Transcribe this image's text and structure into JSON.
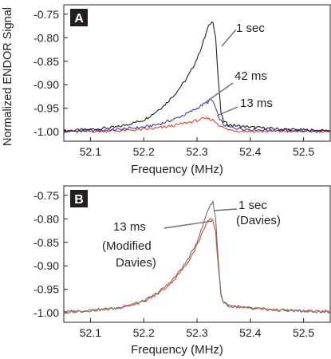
{
  "figure": {
    "ylabel": "Normalized ENDOR Signal"
  },
  "colors": {
    "black": "#231f20",
    "gray": "#6d6e71",
    "blue": "#3f3fae",
    "red": "#e8442a",
    "badge_bg": "#231f20",
    "badge_fg": "#ffffff"
  },
  "chart_data": [
    {
      "type": "line",
      "panel": "A",
      "xlabel": "Frequency (MHz)",
      "xlim": [
        52.05,
        52.55
      ],
      "ylim": [
        -1.02,
        -0.73
      ],
      "x_ticks": [
        "52.1",
        "52.2",
        "52.3",
        "52.4",
        "52.5"
      ],
      "y_ticks": [
        "-0.75",
        "-0.80",
        "-0.85",
        "-0.90",
        "-0.95",
        "-1.00"
      ],
      "grid": false,
      "series": [
        {
          "name": "1 sec",
          "color": "#231f20",
          "x": [
            52.05,
            52.1,
            52.15,
            52.2,
            52.22,
            52.24,
            52.26,
            52.28,
            52.29,
            52.3,
            52.31,
            52.315,
            52.32,
            52.325,
            52.33,
            52.335,
            52.34,
            52.345,
            52.35,
            52.36,
            52.38,
            52.4,
            52.45,
            52.5,
            52.55
          ],
          "y": [
            -0.998,
            -0.995,
            -0.99,
            -0.975,
            -0.96,
            -0.942,
            -0.918,
            -0.888,
            -0.868,
            -0.845,
            -0.815,
            -0.798,
            -0.78,
            -0.77,
            -0.765,
            -0.8,
            -0.89,
            -0.96,
            -0.978,
            -0.985,
            -0.988,
            -0.99,
            -0.994,
            -0.996,
            -0.998
          ]
        },
        {
          "name": "42 ms",
          "color": "#3f3fae",
          "x": [
            52.05,
            52.1,
            52.15,
            52.2,
            52.22,
            52.24,
            52.26,
            52.28,
            52.3,
            52.31,
            52.32,
            52.325,
            52.33,
            52.335,
            52.34,
            52.35,
            52.36,
            52.38,
            52.4,
            52.45,
            52.5,
            52.55
          ],
          "y": [
            -0.999,
            -0.998,
            -0.995,
            -0.99,
            -0.986,
            -0.98,
            -0.972,
            -0.962,
            -0.95,
            -0.943,
            -0.937,
            -0.932,
            -0.935,
            -0.95,
            -0.968,
            -0.985,
            -0.99,
            -0.993,
            -0.995,
            -0.997,
            -0.998,
            -0.999
          ]
        },
        {
          "name": "13 ms",
          "color": "#e8442a",
          "x": [
            52.05,
            52.1,
            52.15,
            52.2,
            52.22,
            52.24,
            52.26,
            52.28,
            52.3,
            52.31,
            52.32,
            52.33,
            52.34,
            52.35,
            52.36,
            52.38,
            52.4,
            52.45,
            52.5,
            52.55
          ],
          "y": [
            -0.999,
            -0.999,
            -0.998,
            -0.995,
            -0.993,
            -0.99,
            -0.986,
            -0.981,
            -0.976,
            -0.973,
            -0.972,
            -0.975,
            -0.984,
            -0.992,
            -0.996,
            -0.998,
            -0.999,
            -0.999,
            -0.999,
            -0.999
          ]
        }
      ],
      "annotations": [
        "1 sec",
        "42 ms",
        "13 ms"
      ]
    },
    {
      "type": "line",
      "panel": "B",
      "xlabel": "Frequency (MHz)",
      "xlim": [
        52.05,
        52.55
      ],
      "ylim": [
        -1.02,
        -0.73
      ],
      "x_ticks": [
        "52.1",
        "52.2",
        "52.3",
        "52.4",
        "52.5"
      ],
      "y_ticks": [
        "-0.75",
        "-0.80",
        "-0.85",
        "-0.90",
        "-0.95",
        "-1.00"
      ],
      "grid": false,
      "series": [
        {
          "name": "1 sec (Davies)",
          "color": "#6d6e71",
          "x": [
            52.05,
            52.1,
            52.15,
            52.2,
            52.22,
            52.24,
            52.26,
            52.28,
            52.29,
            52.3,
            52.31,
            52.315,
            52.32,
            52.325,
            52.33,
            52.335,
            52.34,
            52.345,
            52.35,
            52.36,
            52.38,
            52.4,
            52.45,
            52.5,
            52.55
          ],
          "y": [
            -0.998,
            -0.995,
            -0.99,
            -0.975,
            -0.962,
            -0.945,
            -0.922,
            -0.892,
            -0.872,
            -0.848,
            -0.818,
            -0.8,
            -0.782,
            -0.77,
            -0.765,
            -0.8,
            -0.89,
            -0.96,
            -0.978,
            -0.985,
            -0.988,
            -0.99,
            -0.994,
            -0.996,
            -0.998
          ]
        },
        {
          "name": "13 ms (Modified Davies)",
          "color": "#e8442a",
          "x": [
            52.05,
            52.1,
            52.15,
            52.2,
            52.22,
            52.24,
            52.26,
            52.28,
            52.29,
            52.3,
            52.31,
            52.315,
            52.32,
            52.325,
            52.33,
            52.335,
            52.34,
            52.345,
            52.35,
            52.36,
            52.38,
            52.4,
            52.45,
            52.5,
            52.55
          ],
          "y": [
            -0.998,
            -0.995,
            -0.99,
            -0.976,
            -0.964,
            -0.948,
            -0.926,
            -0.897,
            -0.878,
            -0.856,
            -0.83,
            -0.815,
            -0.805,
            -0.802,
            -0.805,
            -0.83,
            -0.9,
            -0.962,
            -0.978,
            -0.985,
            -0.988,
            -0.99,
            -0.994,
            -0.996,
            -0.998
          ]
        }
      ],
      "annotations": [
        "1 sec",
        "(Davies)",
        "13 ms",
        "(Modified",
        "Davies)"
      ]
    }
  ]
}
